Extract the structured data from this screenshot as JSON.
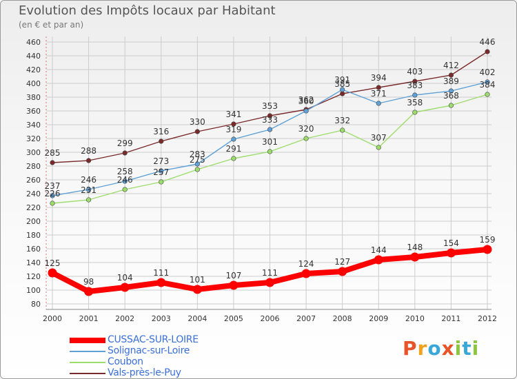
{
  "title": "Evolution des Impôts locaux par Habitant",
  "subtitle": "(en € et par an)",
  "logo": {
    "text": "Proxiti",
    "colors": [
      "#e8542a",
      "#f0a21e",
      "#3aa7d9",
      "#e8542a",
      "#8cc63f",
      "#3aa7d9",
      "#8cc63f"
    ]
  },
  "chart_data": {
    "type": "line",
    "x": [
      2000,
      2001,
      2002,
      2003,
      2004,
      2005,
      2006,
      2007,
      2008,
      2009,
      2010,
      2011,
      2012
    ],
    "ylim": [
      80,
      460
    ],
    "yticks": [
      80,
      100,
      120,
      140,
      160,
      180,
      200,
      220,
      240,
      260,
      280,
      300,
      320,
      340,
      360,
      380,
      400,
      420,
      440,
      460
    ],
    "grid": true,
    "series": [
      {
        "name": "CUSSAC-SUR-LOIRE",
        "color": "#ff0000",
        "values": [
          125,
          98,
          104,
          111,
          101,
          107,
          111,
          124,
          127,
          144,
          148,
          154,
          159
        ]
      },
      {
        "name": "Solignac-sur-Loire",
        "color": "#5fa0d6",
        "values": [
          237,
          246,
          258,
          273,
          283,
          319,
          333,
          360,
          391,
          371,
          383,
          389,
          402
        ]
      },
      {
        "name": "Coubon",
        "color": "#9cdc6c",
        "values": [
          226,
          231,
          246,
          257,
          275,
          291,
          301,
          320,
          332,
          307,
          358,
          368,
          384
        ]
      },
      {
        "name": "Vals-près-le-Puy",
        "color": "#7a2a2a",
        "values": [
          285,
          288,
          299,
          316,
          330,
          341,
          353,
          362,
          385,
          394,
          403,
          412,
          446
        ]
      }
    ]
  }
}
